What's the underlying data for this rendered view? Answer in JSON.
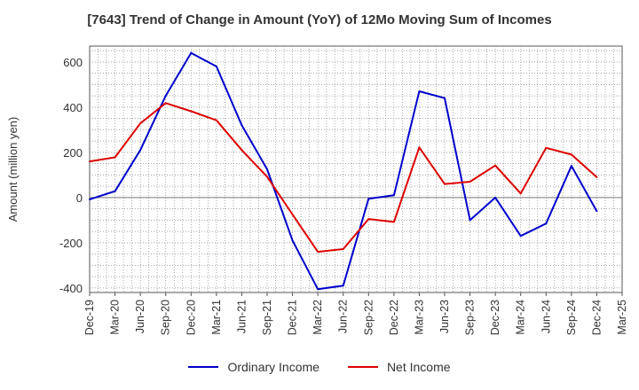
{
  "chart_data": {
    "type": "line",
    "title": "[7643]  Trend of Change in Amount (YoY) of 12Mo Moving Sum of Incomes",
    "ylabel": "Amount (million yen)",
    "xlabel": "",
    "ylim": [
      -420,
      670
    ],
    "yticks": [
      -400,
      -200,
      0,
      200,
      400,
      600
    ],
    "grid": true,
    "legend_position": "bottom",
    "categories": [
      "Dec-19",
      "Mar-20",
      "Jun-20",
      "Sep-20",
      "Dec-20",
      "Mar-21",
      "Jun-21",
      "Sep-21",
      "Dec-21",
      "Mar-22",
      "Jun-22",
      "Sep-22",
      "Dec-22",
      "Mar-23",
      "Jun-23",
      "Sep-23",
      "Dec-23",
      "Mar-24",
      "Jun-24",
      "Sep-24",
      "Dec-24",
      "Mar-25"
    ],
    "series": [
      {
        "name": "Ordinary Income",
        "color": "#0000cc",
        "values": [
          -8,
          28,
          210,
          450,
          640,
          580,
          320,
          125,
          -190,
          -405,
          -390,
          -5,
          10,
          470,
          440,
          -100,
          0,
          -170,
          -115,
          140,
          -60,
          null
        ]
      },
      {
        "name": "Net Income",
        "color": "#dd0000",
        "values": [
          160,
          178,
          328,
          418,
          382,
          342,
          210,
          92,
          -75,
          -240,
          -228,
          -95,
          -108,
          222,
          60,
          70,
          142,
          18,
          220,
          190,
          90,
          null
        ]
      }
    ]
  }
}
